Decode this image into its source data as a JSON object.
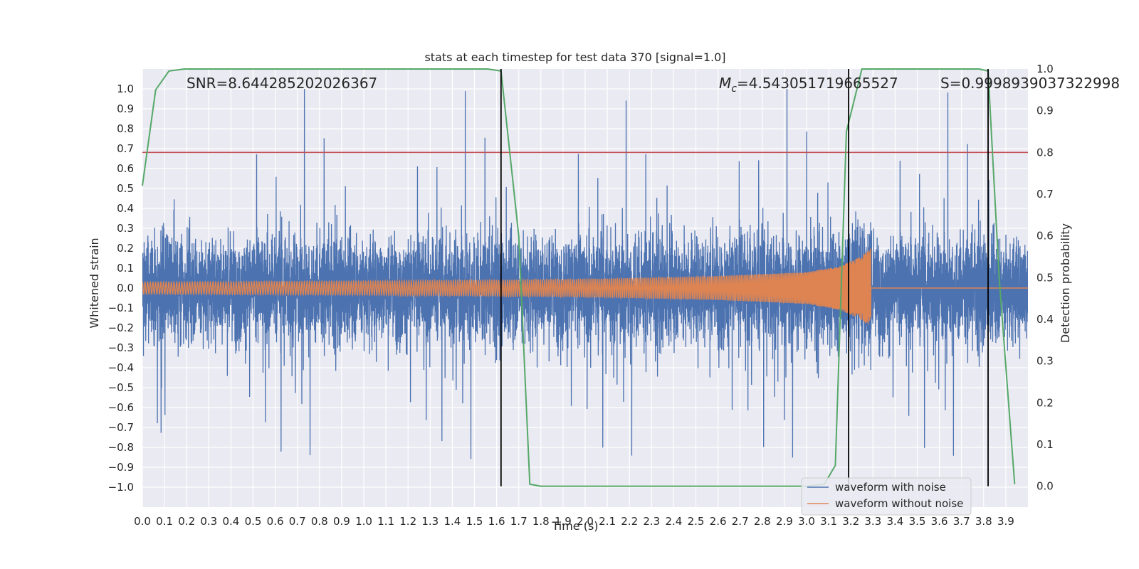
{
  "chart_data": {
    "type": "line",
    "title": "stats at each timestep for test data 370 [signal=1.0]",
    "xlabel": "Time (s)",
    "ylabel": "Whitened strain",
    "y2label": "Detection probability",
    "xlim": [
      0.0,
      4.0
    ],
    "ylim": [
      -1.1,
      1.1
    ],
    "y2lim": [
      -0.05,
      1.0
    ],
    "xticks": [
      0.0,
      0.1,
      0.2,
      0.3,
      0.4,
      0.5,
      0.6,
      0.7,
      0.8,
      0.9,
      1.0,
      1.1,
      1.2,
      1.3,
      1.4,
      1.5,
      1.6,
      1.7,
      1.8,
      1.9,
      2.0,
      2.1,
      2.2,
      2.3,
      2.4,
      2.5,
      2.6,
      2.7,
      2.8,
      2.9,
      3.0,
      3.1,
      3.2,
      3.3,
      3.4,
      3.5,
      3.6,
      3.7,
      3.8,
      3.9
    ],
    "xtick_labels": [
      "0.0",
      "0.1",
      "0.2",
      "0.3",
      "0.4",
      "0.5",
      "0.6",
      "0.7",
      "0.8",
      "0.9",
      "1.0",
      "1.1",
      "1.2",
      "1.3",
      "1.4",
      "1.5",
      "1.6",
      "1.7",
      "1.8",
      "1.9",
      "2.0",
      "2.1",
      "2.2",
      "2.3",
      "2.4",
      "2.5",
      "2.6",
      "2.7",
      "2.8",
      "2.9",
      "3.0",
      "3.1",
      "3.2",
      "3.3",
      "3.4",
      "3.5",
      "3.6",
      "3.7",
      "3.8",
      "3.9"
    ],
    "yticks": [
      1.0,
      0.9,
      0.8,
      0.7,
      0.6,
      0.5,
      0.4,
      0.3,
      0.2,
      0.1,
      0.0,
      -0.1,
      -0.2,
      -0.3,
      -0.4,
      -0.5,
      -0.6,
      -0.7,
      -0.8,
      -0.9,
      -1.0
    ],
    "ytick_labels": [
      "1.0",
      "0.9",
      "0.8",
      "0.7",
      "0.6",
      "0.5",
      "0.4",
      "0.3",
      "0.2",
      "0.1",
      "0.0",
      "−0.1",
      "−0.2",
      "−0.3",
      "−0.4",
      "−0.5",
      "−0.6",
      "−0.7",
      "−0.8",
      "−0.9",
      "−1.0"
    ],
    "y2ticks": [
      1.0,
      0.9,
      0.8,
      0.7,
      0.6,
      0.5,
      0.4,
      0.3,
      0.2,
      0.1,
      0.0
    ],
    "y2tick_labels": [
      "1.0",
      "0.9",
      "0.8",
      "0.7",
      "0.6",
      "0.5",
      "0.4",
      "0.3",
      "0.2",
      "0.1",
      "0.0"
    ],
    "annotations": {
      "snr": "SNR=8.644285202026367",
      "mc_symbol": "M",
      "mc_sub": "c",
      "mc_value": "=4.543051719665527",
      "s": "S=0.9998939037322998"
    },
    "threshold": {
      "value": 0.8,
      "color": "#c44e52"
    },
    "vertical_markers": [
      1.62,
      3.19,
      3.82
    ],
    "series": [
      {
        "name": "waveform with noise",
        "color": "#4c72b0",
        "axis": "left",
        "kind": "noise",
        "amplitude_range": [
          -1.0,
          1.0
        ]
      },
      {
        "name": "waveform without noise",
        "color": "#dd8452",
        "axis": "left",
        "kind": "chirp",
        "envelope_x": [
          0.0,
          1.0,
          2.0,
          2.6,
          3.0,
          3.15,
          3.25,
          3.29,
          3.295
        ],
        "envelope_amp": [
          0.03,
          0.035,
          0.045,
          0.06,
          0.08,
          0.11,
          0.16,
          0.2,
          0.0
        ],
        "merger_time": 3.29
      },
      {
        "name": "detection probability",
        "color": "#55a868",
        "axis": "right",
        "kind": "line",
        "x": [
          0.0,
          0.06,
          0.12,
          0.19,
          1.56,
          1.62,
          1.7,
          1.75,
          1.8,
          2.4,
          3.0,
          3.08,
          3.13,
          3.18,
          3.25,
          3.78,
          3.82,
          3.87,
          3.94
        ],
        "y": [
          0.72,
          0.95,
          0.995,
          1.0,
          1.0,
          0.995,
          0.6,
          0.005,
          0.0,
          0.0,
          0.0,
          0.005,
          0.05,
          0.85,
          1.0,
          1.0,
          0.995,
          0.5,
          0.005
        ]
      }
    ],
    "legend": {
      "position": "lower-right",
      "entries": [
        {
          "label": "waveform with noise",
          "color": "#4c72b0"
        },
        {
          "label": "waveform without noise",
          "color": "#dd8452"
        }
      ]
    },
    "style": {
      "axes_bg": "#eaeaf2",
      "grid_color": "#ffffff",
      "marker_color": "#000000"
    }
  }
}
